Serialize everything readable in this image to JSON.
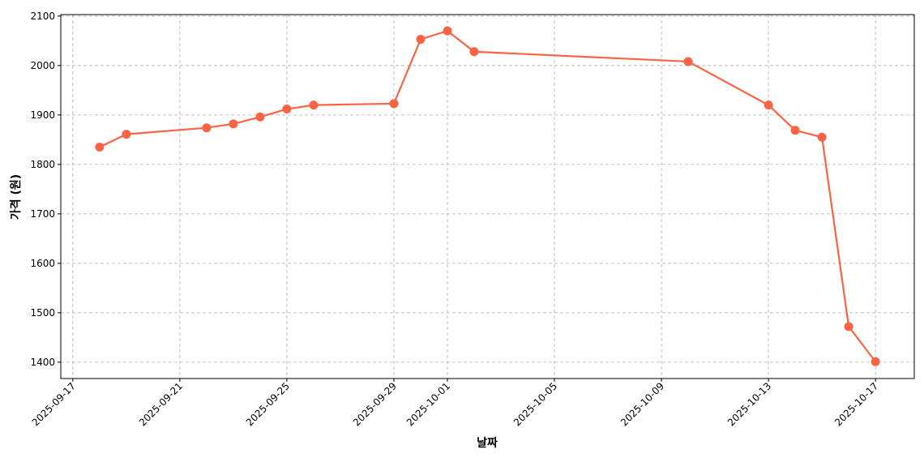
{
  "chart_data": {
    "type": "line",
    "xlabel": "날짜",
    "ylabel": "가격 (원)",
    "x": [
      "2025-09-18",
      "2025-09-19",
      "2025-09-22",
      "2025-09-23",
      "2025-09-24",
      "2025-09-25",
      "2025-09-26",
      "2025-09-29",
      "2025-09-30",
      "2025-10-01",
      "2025-10-02",
      "2025-10-10",
      "2025-10-13",
      "2025-10-14",
      "2025-10-15",
      "2025-10-16",
      "2025-10-17"
    ],
    "values": [
      1835,
      1861,
      1874,
      1882,
      1896,
      1912,
      1920,
      1923,
      2053,
      2070,
      2028,
      2008,
      1920,
      1869,
      1855,
      1472,
      1401
    ],
    "color": "#fa6444",
    "xlim": [
      "2025-09-16T13:12:00Z",
      "2025-10-18T10:48:00Z"
    ],
    "xticks": [
      "2025-09-17",
      "2025-09-21",
      "2025-09-25",
      "2025-09-29",
      "2025-10-01",
      "2025-10-05",
      "2025-10-09",
      "2025-10-13",
      "2025-10-17"
    ],
    "ylim": [
      1367,
      2103
    ],
    "yticks": [
      1400,
      1500,
      1600,
      1700,
      1800,
      1900,
      2000,
      2100
    ],
    "grid": true
  }
}
